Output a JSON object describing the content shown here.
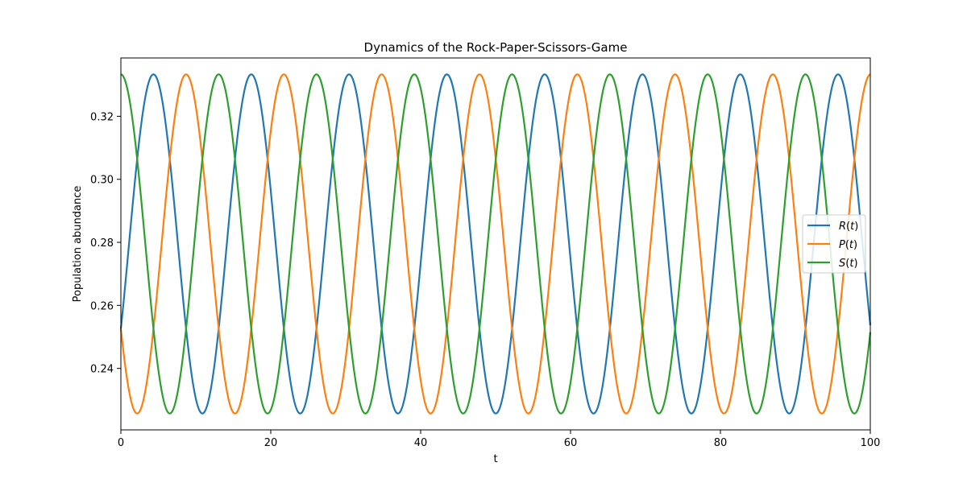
{
  "chart_data": {
    "type": "line",
    "title": "Dynamics of the Rock-Paper-Scissors-Game",
    "xlabel": "t",
    "ylabel": "Population abundance",
    "xlim": [
      0,
      100
    ],
    "ylim": [
      0.2205,
      0.3385
    ],
    "xticks": [
      0,
      20,
      40,
      60,
      80,
      100
    ],
    "yticks": [
      0.24,
      0.26,
      0.28,
      0.3,
      0.32
    ],
    "xtick_labels": [
      "0",
      "20",
      "40",
      "60",
      "80",
      "100"
    ],
    "ytick_labels": [
      "0.24",
      "0.26",
      "0.28",
      "0.30",
      "0.32"
    ],
    "grid": false,
    "legend_position": "center-right",
    "oscillation": {
      "mean": 0.2795,
      "amplitude": 0.0538,
      "period": 13.05,
      "peak_times": {
        "R": 4.35,
        "P": 8.7,
        "S": 0.0
      }
    },
    "series": [
      {
        "name": "R(t)",
        "legend": {
          "var": "R",
          "open": "(",
          "arg": "t",
          "close": ")"
        },
        "color": "#1f77b4",
        "start": 0.25
      },
      {
        "name": "P(t)",
        "legend": {
          "var": "P",
          "open": "(",
          "arg": "t",
          "close": ")"
        },
        "color": "#ff7f0e",
        "start": 0.25
      },
      {
        "name": "S(t)",
        "legend": {
          "var": "S",
          "open": "(",
          "arg": "t",
          "close": ")"
        },
        "color": "#2ca02c",
        "start": 0.3333
      }
    ]
  }
}
